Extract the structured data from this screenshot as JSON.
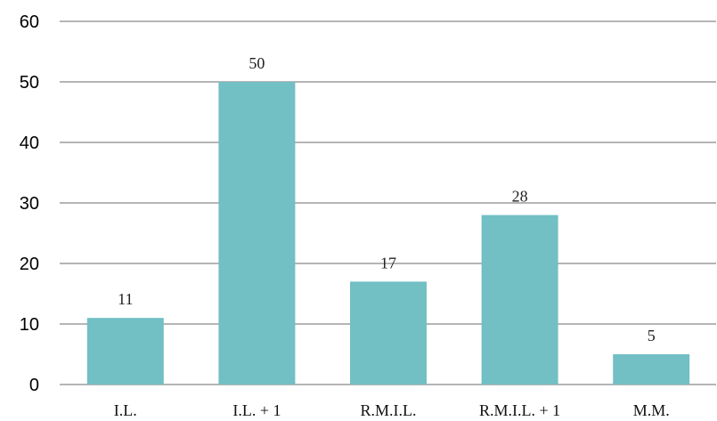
{
  "chart_data": {
    "type": "bar",
    "categories": [
      "I.L.",
      "I.L. + 1",
      "R.M.I.L.",
      "R.M.I.L. + 1",
      "M.M."
    ],
    "values": [
      11,
      50,
      17,
      28,
      5
    ],
    "data_labels": [
      "11",
      "50",
      "17",
      "28",
      "5"
    ],
    "yticks": [
      0,
      10,
      20,
      30,
      40,
      50,
      60
    ],
    "ylim": [
      0,
      60
    ],
    "grid": true,
    "bar_color": "#72bfc4",
    "title": "",
    "xlabel": "",
    "ylabel": ""
  }
}
